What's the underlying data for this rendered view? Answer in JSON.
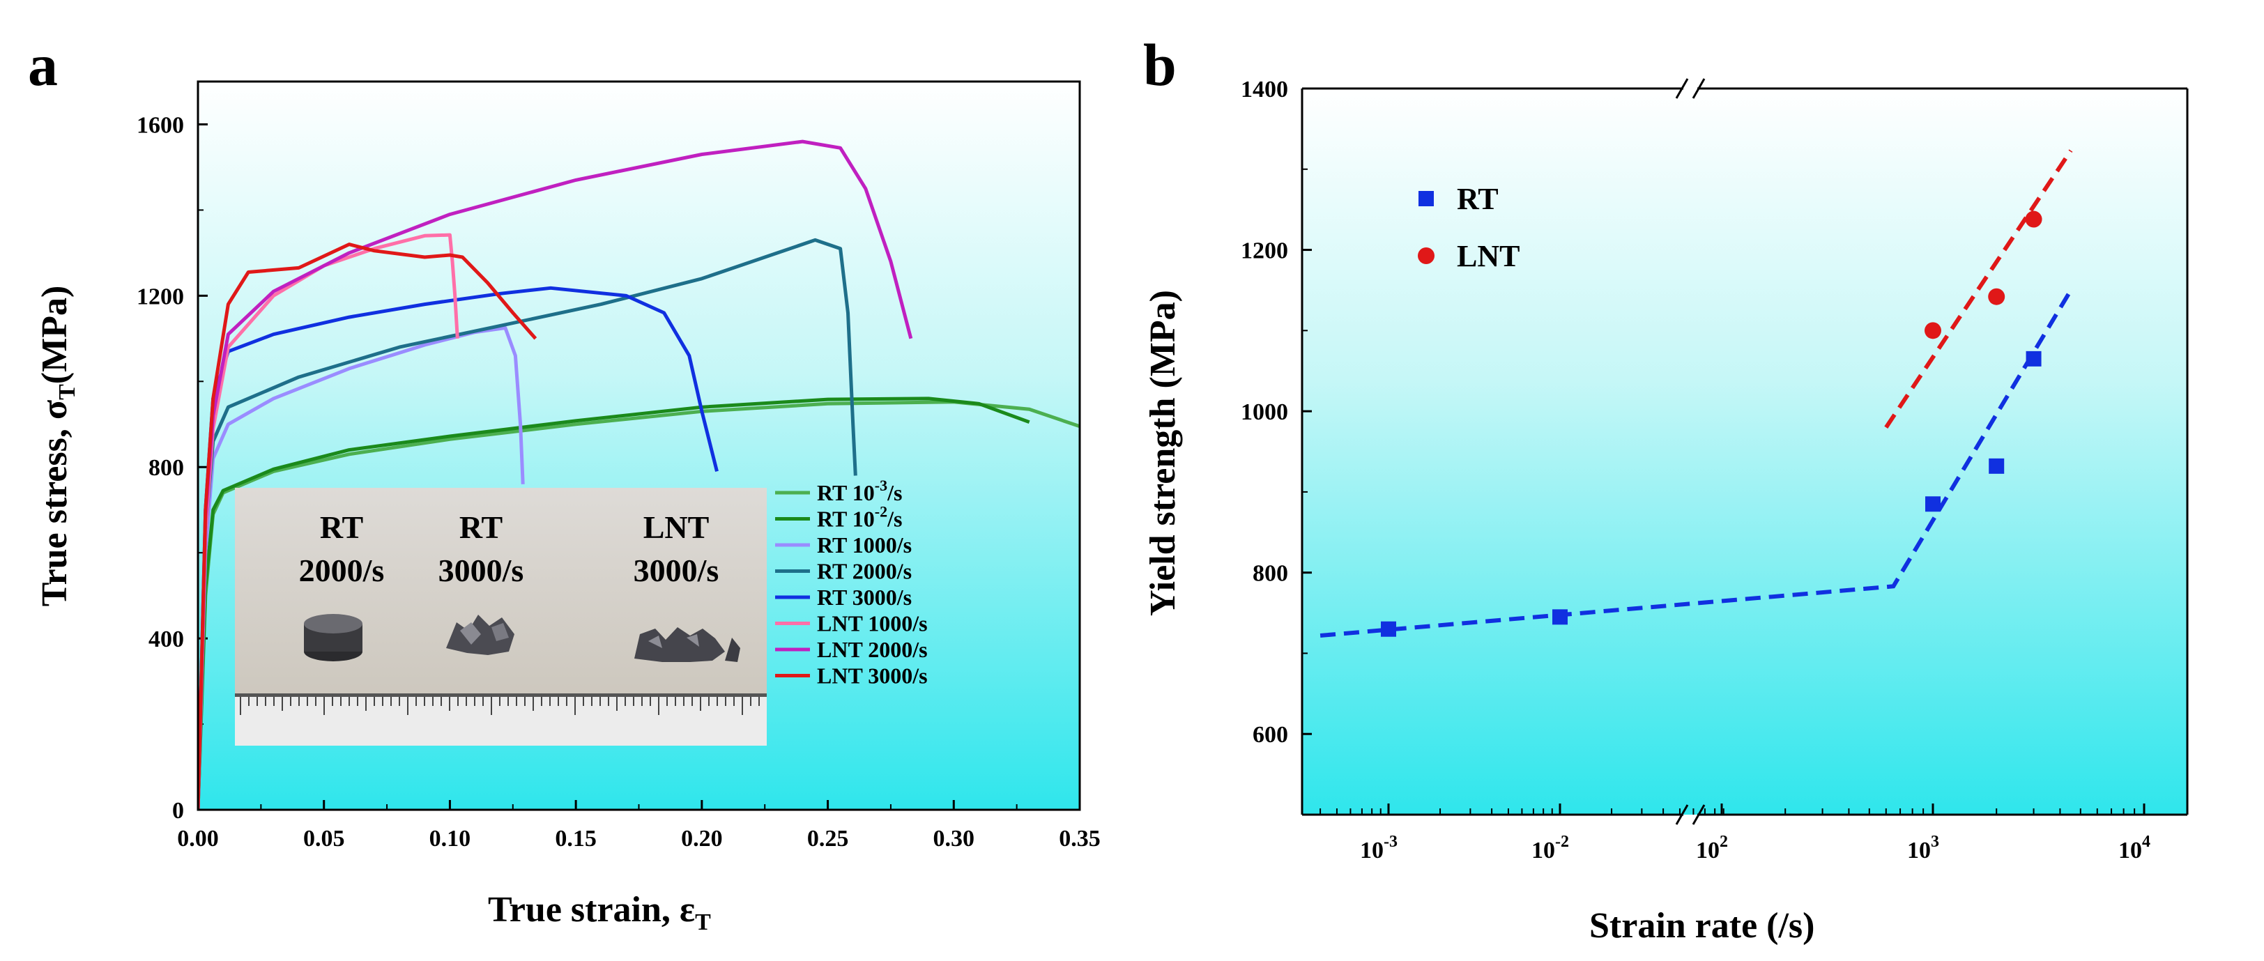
{
  "panel_a": {
    "letter": "a",
    "photo": {
      "labels": [
        {
          "line1": "RT",
          "line2": "2000/s"
        },
        {
          "line1": "RT",
          "line2": "3000/s"
        },
        {
          "line1": "LNT",
          "line2": "3000/s"
        }
      ]
    }
  },
  "panel_b": {
    "letter": "b"
  },
  "chart_data": [
    {
      "type": "line",
      "title": "",
      "xlabel": "True strain, εT",
      "ylabel": "True stress, σT(MPa)",
      "xlim": [
        0,
        0.35
      ],
      "ylim": [
        0,
        1700
      ],
      "x_ticks": [
        0,
        0.05,
        0.1,
        0.15,
        0.2,
        0.25,
        0.3,
        0.35
      ],
      "x_tick_labels": [
        "0.00",
        "0.05",
        "0.10",
        "0.15",
        "0.20",
        "0.25",
        "0.30",
        "0.35"
      ],
      "y_ticks": [
        0,
        400,
        800,
        1200,
        1600
      ],
      "y_tick_labels": [
        "0",
        "400",
        "800",
        "1200",
        "1600"
      ],
      "legend_position": "bottom-right",
      "series": [
        {
          "name": "RT 10",
          "sup": "-3",
          "suffix": "/s",
          "color": "#4caf50",
          "points": [
            [
              0,
              0
            ],
            [
              0.003,
              500
            ],
            [
              0.006,
              690
            ],
            [
              0.01,
              740
            ],
            [
              0.03,
              790
            ],
            [
              0.06,
              830
            ],
            [
              0.1,
              865
            ],
            [
              0.15,
              900
            ],
            [
              0.2,
              930
            ],
            [
              0.25,
              948
            ],
            [
              0.3,
              952
            ],
            [
              0.33,
              935
            ],
            [
              0.35,
              895
            ]
          ]
        },
        {
          "name": "RT 10",
          "sup": "-2",
          "suffix": "/s",
          "color": "#1b8a1b",
          "points": [
            [
              0,
              0
            ],
            [
              0.003,
              520
            ],
            [
              0.006,
              700
            ],
            [
              0.01,
              745
            ],
            [
              0.03,
              795
            ],
            [
              0.06,
              840
            ],
            [
              0.1,
              872
            ],
            [
              0.15,
              908
            ],
            [
              0.2,
              940
            ],
            [
              0.25,
              958
            ],
            [
              0.29,
              960
            ],
            [
              0.31,
              948
            ],
            [
              0.33,
              905
            ]
          ]
        },
        {
          "name": "RT 1000/s",
          "color": "#9a8cff",
          "points": [
            [
              0,
              0
            ],
            [
              0.003,
              600
            ],
            [
              0.006,
              820
            ],
            [
              0.012,
              900
            ],
            [
              0.03,
              960
            ],
            [
              0.06,
              1030
            ],
            [
              0.09,
              1085
            ],
            [
              0.11,
              1115
            ],
            [
              0.122,
              1125
            ],
            [
              0.126,
              1060
            ],
            [
              0.128,
              900
            ],
            [
              0.129,
              760
            ]
          ]
        },
        {
          "name": "RT 2000/s",
          "color": "#1e6f8a",
          "points": [
            [
              0,
              0
            ],
            [
              0.003,
              650
            ],
            [
              0.006,
              860
            ],
            [
              0.012,
              940
            ],
            [
              0.04,
              1010
            ],
            [
              0.08,
              1080
            ],
            [
              0.12,
              1130
            ],
            [
              0.16,
              1180
            ],
            [
              0.2,
              1240
            ],
            [
              0.23,
              1300
            ],
            [
              0.245,
              1330
            ],
            [
              0.255,
              1310
            ],
            [
              0.258,
              1160
            ],
            [
              0.26,
              900
            ],
            [
              0.261,
              780
            ]
          ]
        },
        {
          "name": "RT 3000/s",
          "color": "#1030e0",
          "points": [
            [
              0,
              0
            ],
            [
              0.003,
              700
            ],
            [
              0.006,
              960
            ],
            [
              0.012,
              1070
            ],
            [
              0.03,
              1110
            ],
            [
              0.06,
              1150
            ],
            [
              0.09,
              1180
            ],
            [
              0.12,
              1205
            ],
            [
              0.14,
              1218
            ],
            [
              0.17,
              1200
            ],
            [
              0.185,
              1160
            ],
            [
              0.195,
              1060
            ],
            [
              0.2,
              930
            ],
            [
              0.206,
              790
            ]
          ]
        },
        {
          "name": "LNT 1000/s",
          "color": "#ff6fa8",
          "points": [
            [
              0,
              0
            ],
            [
              0.003,
              650
            ],
            [
              0.006,
              890
            ],
            [
              0.012,
              1080
            ],
            [
              0.03,
              1200
            ],
            [
              0.05,
              1270
            ],
            [
              0.07,
              1310
            ],
            [
              0.09,
              1340
            ],
            [
              0.1,
              1342
            ],
            [
              0.101,
              1280
            ],
            [
              0.102,
              1200
            ],
            [
              0.103,
              1100
            ]
          ]
        },
        {
          "name": "LNT 2000/s",
          "color": "#c020c0",
          "points": [
            [
              0,
              0
            ],
            [
              0.003,
              680
            ],
            [
              0.006,
              920
            ],
            [
              0.012,
              1110
            ],
            [
              0.03,
              1210
            ],
            [
              0.06,
              1300
            ],
            [
              0.1,
              1390
            ],
            [
              0.15,
              1470
            ],
            [
              0.2,
              1530
            ],
            [
              0.24,
              1560
            ],
            [
              0.255,
              1545
            ],
            [
              0.265,
              1450
            ],
            [
              0.275,
              1280
            ],
            [
              0.283,
              1100
            ]
          ]
        },
        {
          "name": "LNT 3000/s",
          "color": "#e01818",
          "points": [
            [
              0,
              0
            ],
            [
              0.003,
              700
            ],
            [
              0.006,
              960
            ],
            [
              0.012,
              1180
            ],
            [
              0.02,
              1255
            ],
            [
              0.04,
              1265
            ],
            [
              0.06,
              1320
            ],
            [
              0.07,
              1305
            ],
            [
              0.09,
              1290
            ],
            [
              0.1,
              1295
            ],
            [
              0.105,
              1290
            ],
            [
              0.115,
              1230
            ],
            [
              0.125,
              1160
            ],
            [
              0.134,
              1100
            ]
          ]
        }
      ]
    },
    {
      "type": "scatter",
      "title": "",
      "xlabel": "Strain rate (/s)",
      "ylabel": "Yield strength (MPa)",
      "x_scale": "log (broken axis between 10^-2 and 10^2)",
      "ylim": [
        500,
        1400
      ],
      "y_ticks": [
        600,
        800,
        1000,
        1200,
        1400
      ],
      "y_tick_labels": [
        "600",
        "800",
        "1000",
        "1200",
        "1400"
      ],
      "x_tick_labels": [
        {
          "base": "10",
          "exp": "-3"
        },
        {
          "base": "10",
          "exp": "-2"
        },
        {
          "base": "10",
          "exp": "2"
        },
        {
          "base": "10",
          "exp": "3"
        },
        {
          "base": "10",
          "exp": "4"
        }
      ],
      "legend_position": "top-left",
      "series": [
        {
          "name": "RT",
          "marker": "square",
          "color": "#1030e0",
          "points": [
            {
              "x": 0.001,
              "y": 730
            },
            {
              "x": 0.01,
              "y": 745
            },
            {
              "x": 1000,
              "y": 885
            },
            {
              "x": 2000,
              "y": 932
            },
            {
              "x": 3000,
              "y": 1065
            }
          ]
        },
        {
          "name": "LNT",
          "marker": "circle",
          "color": "#e01818",
          "points": [
            {
              "x": 1000,
              "y": 1100
            },
            {
              "x": 2000,
              "y": 1142
            },
            {
              "x": 3000,
              "y": 1238
            }
          ]
        }
      ],
      "fits": [
        {
          "name": "RT fit",
          "color": "#1030e0",
          "style": "dashed",
          "points": [
            {
              "x": 0.0004,
              "y": 722
            },
            {
              "x": 650,
              "y": 783
            },
            {
              "x": 4500,
              "y": 1150
            }
          ]
        },
        {
          "name": "LNT fit",
          "color": "#e01818",
          "style": "dashed",
          "points": [
            {
              "x": 600,
              "y": 980
            },
            {
              "x": 4500,
              "y": 1323
            }
          ]
        }
      ]
    }
  ]
}
